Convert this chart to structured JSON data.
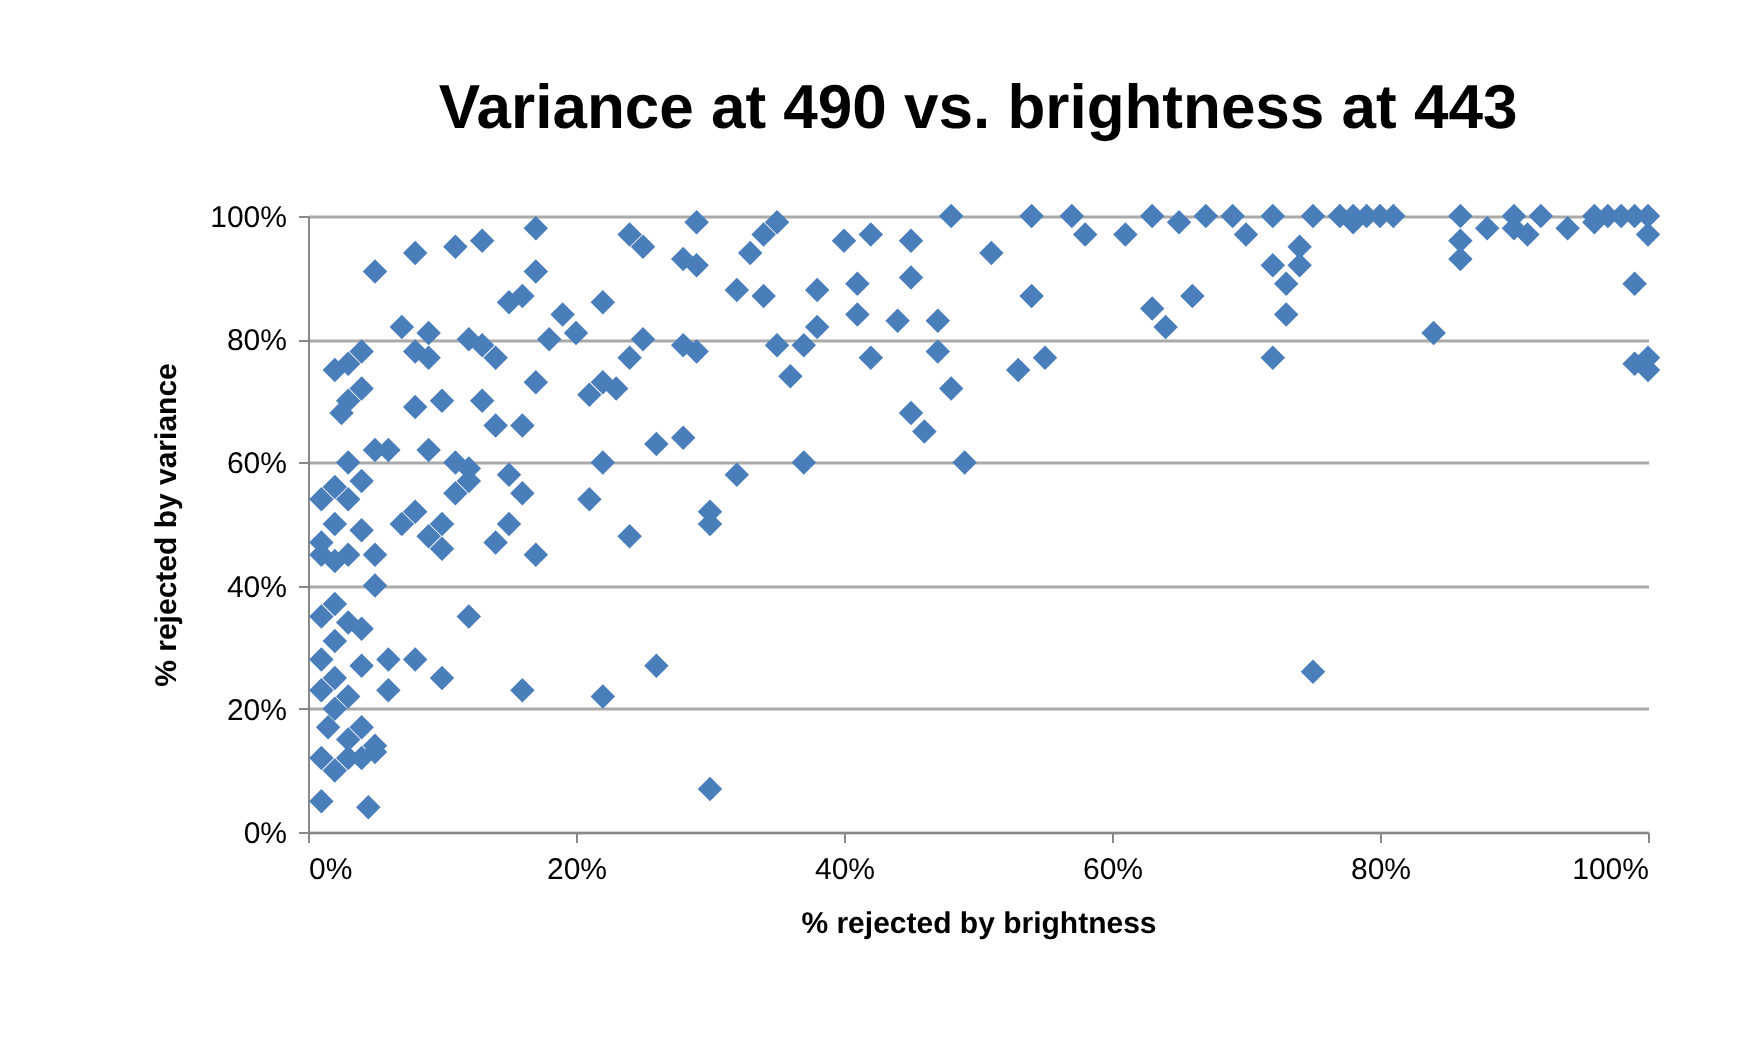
{
  "chart_data": {
    "type": "scatter",
    "title": "Variance at 490 vs. brightness at 443",
    "xlabel": "% rejected by brightness",
    "ylabel": "% rejected by variance",
    "x": [
      1,
      4.5,
      1,
      2,
      3,
      1.5,
      2,
      1,
      2,
      3,
      4,
      1,
      2,
      3,
      4,
      1,
      2,
      1,
      2,
      3,
      1,
      2,
      3,
      1,
      4,
      5,
      5,
      2,
      3,
      4,
      5,
      6,
      6,
      4,
      5,
      4,
      5,
      3,
      2.5,
      3,
      4,
      2,
      3,
      4,
      5,
      8,
      7,
      9,
      8,
      9,
      10,
      8,
      9,
      6,
      7,
      8,
      9,
      10,
      10,
      8,
      10,
      12,
      11,
      12,
      11,
      12,
      13,
      14,
      13,
      14,
      15,
      16,
      17,
      17,
      13,
      11,
      12,
      15,
      14,
      16,
      15,
      16,
      17,
      18,
      17,
      16,
      19,
      20,
      21,
      22,
      22,
      23,
      21,
      22,
      24,
      24,
      25,
      24,
      25,
      22,
      26,
      26,
      28,
      28,
      29,
      28,
      29,
      29,
      30,
      30,
      30,
      32,
      32,
      33,
      34,
      34,
      35,
      35,
      36,
      37,
      37,
      38,
      38,
      40,
      41,
      41,
      42,
      42,
      44,
      45,
      45,
      45,
      46,
      47,
      47,
      48,
      48,
      49,
      51,
      53,
      54,
      54,
      55,
      57,
      58,
      61,
      63,
      63,
      64,
      65,
      66,
      67,
      69,
      70,
      72,
      72,
      72,
      73,
      73,
      74,
      74,
      75,
      75,
      77,
      78,
      78,
      79,
      80,
      81,
      84,
      86,
      86,
      86,
      90,
      90,
      91,
      94,
      96,
      97,
      98,
      99,
      99,
      99,
      100,
      100,
      100,
      100,
      96,
      92,
      88
    ],
    "values": [
      5,
      4,
      12,
      10,
      12,
      17,
      20,
      23,
      25,
      22,
      27,
      28,
      31,
      34,
      33,
      35,
      37,
      45,
      44,
      45,
      47,
      50,
      54,
      54,
      49,
      45,
      40,
      56,
      60,
      57,
      62,
      28,
      23,
      17,
      14,
      12,
      13,
      15,
      68,
      70,
      72,
      75,
      76,
      78,
      91,
      94,
      82,
      81,
      78,
      77,
      70,
      69,
      62,
      62,
      50,
      52,
      48,
      50,
      46,
      28,
      25,
      35,
      55,
      57,
      60,
      59,
      70,
      66,
      79,
      77,
      86,
      87,
      91,
      98,
      96,
      95,
      80,
      50,
      47,
      55,
      58,
      66,
      73,
      80,
      45,
      23,
      84,
      81,
      71,
      73,
      86,
      72,
      54,
      60,
      48,
      77,
      80,
      97,
      95,
      22,
      27,
      63,
      64,
      79,
      78,
      93,
      92,
      99,
      50,
      52,
      7,
      58,
      88,
      94,
      87,
      97,
      99,
      79,
      74,
      79,
      60,
      82,
      88,
      96,
      89,
      84,
      77,
      97,
      83,
      96,
      90,
      68,
      65,
      78,
      83,
      72,
      100,
      60,
      94,
      75,
      100,
      87,
      77,
      100,
      97,
      97,
      85,
      100,
      82,
      99,
      87,
      100,
      100,
      97,
      77,
      92,
      100,
      89,
      84,
      95,
      92,
      100,
      26,
      100,
      100,
      99,
      100,
      100,
      100,
      81,
      100,
      93,
      96,
      100,
      98,
      97,
      98,
      100,
      100,
      100,
      100,
      89,
      76,
      75,
      77,
      97,
      100,
      99,
      100,
      98
    ],
    "color": "#4a7ebb",
    "marker": "diamond",
    "grid": "y",
    "xlim": [
      0,
      100
    ],
    "xticks": [
      {
        "value": 0,
        "label": "0%"
      },
      {
        "value": 20,
        "label": "20%"
      },
      {
        "value": 40,
        "label": "40%"
      },
      {
        "value": 60,
        "label": "60%"
      },
      {
        "value": 80,
        "label": "80%"
      },
      {
        "value": 100,
        "label": "100%"
      }
    ],
    "ylim": [
      0,
      100
    ],
    "yticks": [
      {
        "value": 0,
        "label": "0%"
      },
      {
        "value": 20,
        "label": "20%"
      },
      {
        "value": 40,
        "label": "40%"
      },
      {
        "value": 60,
        "label": "60%"
      },
      {
        "value": 80,
        "label": "80%"
      },
      {
        "value": 100,
        "label": "100%"
      }
    ]
  }
}
